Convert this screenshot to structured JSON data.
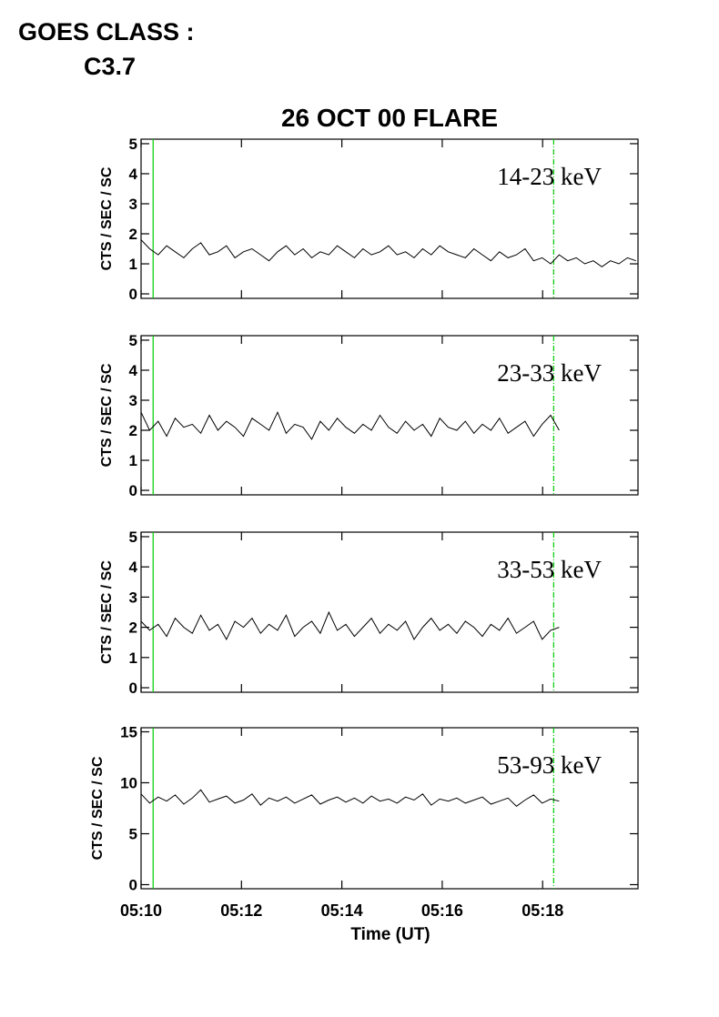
{
  "header": {
    "goes_label": "GOES CLASS :",
    "goes_class": "C3.7"
  },
  "chart_data": [
    {
      "type": "line",
      "title": "26 OCT 00 FLARE",
      "ylabel": "CTS / SEC / SC",
      "annotation": "14-23 keV",
      "xlim": [
        10,
        19.9
      ],
      "ylim": [
        -0.15,
        5.15
      ],
      "yticks": [
        0,
        1,
        2,
        3,
        4,
        5
      ],
      "markers": [
        10.24,
        18.22
      ],
      "marker_color": "#00cc00",
      "series": [
        {
          "color": "#000000",
          "x": [
            10,
            10.17,
            10.34,
            10.51,
            10.68,
            10.85,
            11.02,
            11.19,
            11.36,
            11.53,
            11.7,
            11.87,
            12.04,
            12.21,
            12.38,
            12.55,
            12.72,
            12.89,
            13.06,
            13.23,
            13.4,
            13.57,
            13.74,
            13.91,
            14.08,
            14.25,
            14.42,
            14.59,
            14.76,
            14.93,
            15.1,
            15.27,
            15.44,
            15.61,
            15.78,
            15.95,
            16.12,
            16.29,
            16.46,
            16.63,
            16.8,
            16.97,
            17.14,
            17.31,
            17.48,
            17.65,
            17.82,
            17.99,
            18.16,
            18.33,
            18.5,
            18.67,
            18.84,
            19.01,
            19.18,
            19.35,
            19.52,
            19.69,
            19.86
          ],
          "values": [
            1.8,
            1.5,
            1.3,
            1.6,
            1.4,
            1.2,
            1.5,
            1.7,
            1.3,
            1.4,
            1.6,
            1.2,
            1.4,
            1.5,
            1.3,
            1.1,
            1.4,
            1.6,
            1.3,
            1.5,
            1.2,
            1.4,
            1.3,
            1.6,
            1.4,
            1.2,
            1.5,
            1.3,
            1.4,
            1.6,
            1.3,
            1.4,
            1.2,
            1.5,
            1.3,
            1.6,
            1.4,
            1.3,
            1.2,
            1.5,
            1.3,
            1.1,
            1.4,
            1.2,
            1.3,
            1.5,
            1.1,
            1.2,
            1.0,
            1.3,
            1.1,
            1.2,
            1.0,
            1.1,
            0.9,
            1.1,
            1.0,
            1.2,
            1.1
          ]
        }
      ]
    },
    {
      "type": "line",
      "ylabel": "CTS / SEC / SC",
      "annotation": "23-33 keV",
      "xlim": [
        10,
        19.9
      ],
      "ylim": [
        -0.15,
        5.15
      ],
      "yticks": [
        0,
        1,
        2,
        3,
        4,
        5
      ],
      "markers": [
        10.24,
        18.22
      ],
      "marker_color": "#00cc00",
      "series": [
        {
          "color": "#000000",
          "x": [
            10,
            10.17,
            10.34,
            10.51,
            10.68,
            10.85,
            11.02,
            11.19,
            11.36,
            11.53,
            11.7,
            11.87,
            12.04,
            12.21,
            12.38,
            12.55,
            12.72,
            12.89,
            13.06,
            13.23,
            13.4,
            13.57,
            13.74,
            13.91,
            14.08,
            14.25,
            14.42,
            14.59,
            14.76,
            14.93,
            15.1,
            15.27,
            15.44,
            15.61,
            15.78,
            15.95,
            16.12,
            16.29,
            16.46,
            16.63,
            16.8,
            16.97,
            17.14,
            17.31,
            17.48,
            17.65,
            17.82,
            17.99,
            18.16,
            18.33
          ],
          "values": [
            2.6,
            2.0,
            2.3,
            1.8,
            2.4,
            2.1,
            2.2,
            1.9,
            2.5,
            2.0,
            2.3,
            2.1,
            1.8,
            2.4,
            2.2,
            2.0,
            2.6,
            1.9,
            2.2,
            2.1,
            1.7,
            2.3,
            2.0,
            2.4,
            2.1,
            1.9,
            2.2,
            2.0,
            2.5,
            2.1,
            1.9,
            2.3,
            2.0,
            2.2,
            1.8,
            2.4,
            2.1,
            2.0,
            2.3,
            1.9,
            2.2,
            2.0,
            2.4,
            1.9,
            2.1,
            2.3,
            1.8,
            2.2,
            2.5,
            2.0
          ]
        }
      ]
    },
    {
      "type": "line",
      "ylabel": "CTS / SEC / SC",
      "annotation": "33-53 keV",
      "xlim": [
        10,
        19.9
      ],
      "ylim": [
        -0.15,
        5.15
      ],
      "yticks": [
        0,
        1,
        2,
        3,
        4,
        5
      ],
      "markers": [
        10.24,
        18.22
      ],
      "marker_color": "#00cc00",
      "series": [
        {
          "color": "#000000",
          "x": [
            10,
            10.17,
            10.34,
            10.51,
            10.68,
            10.85,
            11.02,
            11.19,
            11.36,
            11.53,
            11.7,
            11.87,
            12.04,
            12.21,
            12.38,
            12.55,
            12.72,
            12.89,
            13.06,
            13.23,
            13.4,
            13.57,
            13.74,
            13.91,
            14.08,
            14.25,
            14.42,
            14.59,
            14.76,
            14.93,
            15.1,
            15.27,
            15.44,
            15.61,
            15.78,
            15.95,
            16.12,
            16.29,
            16.46,
            16.63,
            16.8,
            16.97,
            17.14,
            17.31,
            17.48,
            17.65,
            17.82,
            17.99,
            18.16,
            18.33
          ],
          "values": [
            2.2,
            1.9,
            2.1,
            1.7,
            2.3,
            2.0,
            1.8,
            2.4,
            1.9,
            2.1,
            1.6,
            2.2,
            2.0,
            2.3,
            1.8,
            2.1,
            1.9,
            2.4,
            1.7,
            2.0,
            2.2,
            1.8,
            2.5,
            1.9,
            2.1,
            1.7,
            2.0,
            2.3,
            1.8,
            2.1,
            1.9,
            2.2,
            1.6,
            2.0,
            2.3,
            1.9,
            2.1,
            1.8,
            2.2,
            2.0,
            1.7,
            2.1,
            1.9,
            2.3,
            1.8,
            2.0,
            2.2,
            1.6,
            1.9,
            2.0
          ]
        }
      ]
    },
    {
      "type": "line",
      "ylabel": "CTS / SEC / SC",
      "annotation": "53-93 keV",
      "xlabel": "Time (UT)",
      "xlim": [
        10,
        19.9
      ],
      "ylim": [
        -0.4,
        15.4
      ],
      "yticks": [
        0,
        5,
        10,
        15
      ],
      "xticks": [
        {
          "value": 10,
          "label": "05:10"
        },
        {
          "value": 12,
          "label": "05:12"
        },
        {
          "value": 14,
          "label": "05:14"
        },
        {
          "value": 16,
          "label": "05:16"
        },
        {
          "value": 18,
          "label": "05:18"
        }
      ],
      "markers": [
        10.24,
        18.22
      ],
      "marker_color": "#00cc00",
      "series": [
        {
          "color": "#000000",
          "x": [
            10,
            10.17,
            10.34,
            10.51,
            10.68,
            10.85,
            11.02,
            11.19,
            11.36,
            11.53,
            11.7,
            11.87,
            12.04,
            12.21,
            12.38,
            12.55,
            12.72,
            12.89,
            13.06,
            13.23,
            13.4,
            13.57,
            13.74,
            13.91,
            14.08,
            14.25,
            14.42,
            14.59,
            14.76,
            14.93,
            15.1,
            15.27,
            15.44,
            15.61,
            15.78,
            15.95,
            16.12,
            16.29,
            16.46,
            16.63,
            16.8,
            16.97,
            17.14,
            17.31,
            17.48,
            17.65,
            17.82,
            17.99,
            18.16,
            18.33
          ],
          "values": [
            8.9,
            8.0,
            8.6,
            8.2,
            8.8,
            7.9,
            8.5,
            9.3,
            8.1,
            8.4,
            8.7,
            8.0,
            8.3,
            8.9,
            7.8,
            8.5,
            8.2,
            8.6,
            8.0,
            8.4,
            8.8,
            7.9,
            8.3,
            8.6,
            8.1,
            8.5,
            8.0,
            8.7,
            8.2,
            8.4,
            8.0,
            8.6,
            8.3,
            8.9,
            7.8,
            8.4,
            8.2,
            8.5,
            8.0,
            8.3,
            8.6,
            7.9,
            8.2,
            8.5,
            7.7,
            8.3,
            8.8,
            8.0,
            8.4,
            8.2
          ]
        }
      ]
    }
  ]
}
